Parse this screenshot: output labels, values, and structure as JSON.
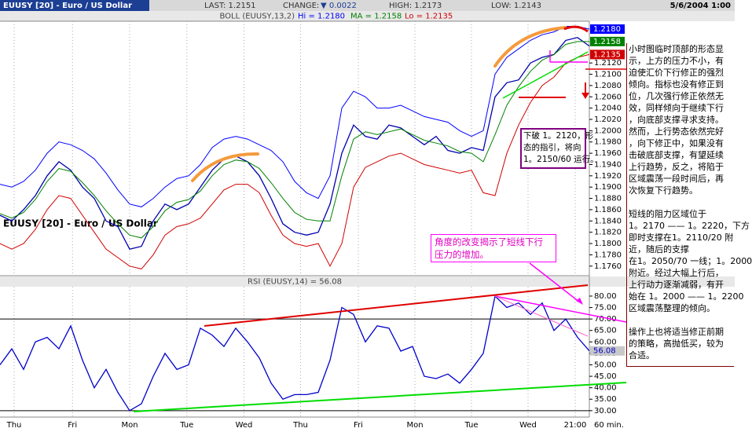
{
  "header": {
    "symbol": "EUUSY [20] - Euro / US Dollar",
    "last": "LAST: 1.2151",
    "change_label": "CHANGE:",
    "change": "▼ 0.0022",
    "high": "HIGH: 1.2173",
    "low": "LOW: 1.2143",
    "datetime": "5/6/2004 1:00"
  },
  "chart_data": [
    {
      "type": "line",
      "subtitle": "BOLL (EUUSY,13,2)",
      "legend_items": [
        "Hi = 1.2180",
        "MA = 1.2158",
        "Lo = 1.2135"
      ],
      "x": [
        0,
        2,
        4,
        6,
        8,
        10,
        12,
        14,
        16,
        18,
        20,
        22,
        24,
        26,
        28,
        30,
        32,
        34,
        36,
        38,
        40,
        42,
        44,
        46,
        48,
        50,
        52,
        54,
        56,
        58,
        60,
        62,
        64,
        66,
        68,
        70,
        72,
        74,
        76,
        78,
        80,
        82,
        84,
        86,
        88,
        90,
        92,
        94,
        96,
        98,
        100
      ],
      "xlim": [
        0,
        100
      ],
      "ylim": [
        1.1743,
        1.2194
      ],
      "yticks": [
        {
          "value": 1.176,
          "label": "1.1760"
        },
        {
          "value": 1.178,
          "label": "1.1780"
        },
        {
          "value": 1.18,
          "label": "1.1800"
        },
        {
          "value": 1.182,
          "label": "1.1820"
        },
        {
          "value": 1.184,
          "label": "1.1840"
        },
        {
          "value": 1.186,
          "label": "1.1860"
        },
        {
          "value": 1.188,
          "label": "1.1880"
        },
        {
          "value": 1.19,
          "label": "1.1900"
        },
        {
          "value": 1.192,
          "label": "1.1920"
        },
        {
          "value": 1.194,
          "label": "1.1940"
        },
        {
          "value": 1.196,
          "label": "1.1960"
        },
        {
          "value": 1.198,
          "label": "1.1980"
        },
        {
          "value": 1.2,
          "label": "1.2000"
        },
        {
          "value": 1.202,
          "label": "1.2020"
        },
        {
          "value": 1.204,
          "label": "1.2040"
        },
        {
          "value": 1.206,
          "label": "1.2060"
        },
        {
          "value": 1.208,
          "label": "1.2080"
        },
        {
          "value": 1.21,
          "label": "1.2100"
        },
        {
          "value": 1.212,
          "label": "1.2120"
        }
      ],
      "series": [
        {
          "color": "#0000b0",
          "values": [
            1.185,
            1.184,
            1.186,
            1.1885,
            1.192,
            1.1945,
            1.193,
            1.19,
            1.188,
            1.184,
            1.183,
            1.179,
            1.1795,
            1.184,
            1.187,
            1.186,
            1.187,
            1.19,
            1.193,
            1.195,
            1.1955,
            1.1945,
            1.192,
            1.188,
            1.1835,
            1.182,
            1.1815,
            1.182,
            1.187,
            1.196,
            1.201,
            1.199,
            1.1985,
            1.201,
            1.2005,
            1.199,
            1.1975,
            1.199,
            1.1965,
            1.196,
            1.197,
            1.1965,
            1.206,
            1.2085,
            1.209,
            1.212,
            1.213,
            1.2135,
            1.216,
            1.2165,
            1.215
          ]
        },
        {
          "color": "#0000ff",
          "end_label": "1.2180",
          "values": [
            1.1905,
            1.19,
            1.191,
            1.193,
            1.196,
            1.198,
            1.1975,
            1.1965,
            1.195,
            1.1925,
            1.1895,
            1.187,
            1.1865,
            1.188,
            1.19,
            1.1915,
            1.192,
            1.194,
            1.197,
            1.1985,
            1.199,
            1.1985,
            1.1975,
            1.1965,
            1.1945,
            1.191,
            1.189,
            1.188,
            1.192,
            1.204,
            1.207,
            1.206,
            1.204,
            1.204,
            1.2045,
            1.2035,
            1.2025,
            1.202,
            1.2015,
            1.2,
            1.199,
            1.2,
            1.21,
            1.213,
            1.2145,
            1.216,
            1.217,
            1.2175,
            1.2185,
            1.2185,
            1.218
          ]
        },
        {
          "color": "#008000",
          "end_label": "1.2158",
          "values": [
            1.1853,
            1.1845,
            1.1855,
            1.1878,
            1.191,
            1.1933,
            1.1928,
            1.1908,
            1.1885,
            1.1858,
            1.1835,
            1.1815,
            1.181,
            1.183,
            1.1858,
            1.1873,
            1.1878,
            1.1893,
            1.192,
            1.194,
            1.1948,
            1.1945,
            1.1933,
            1.1908,
            1.188,
            1.1855,
            1.1843,
            1.184,
            1.184,
            1.192,
            1.1985,
            1.1998,
            1.1993,
            1.1998,
            1.2003,
            1.1993,
            1.1983,
            1.1978,
            1.1973,
            1.1963,
            1.196,
            1.1945,
            1.1993,
            1.2045,
            1.2078,
            1.2105,
            1.2125,
            1.2135,
            1.2153,
            1.2158,
            1.2158
          ]
        },
        {
          "color": "#d00000",
          "end_label": "1.2135",
          "values": [
            1.18,
            1.179,
            1.18,
            1.1825,
            1.186,
            1.1885,
            1.188,
            1.185,
            1.182,
            1.179,
            1.1775,
            1.176,
            1.1755,
            1.178,
            1.1815,
            1.183,
            1.1835,
            1.1845,
            1.187,
            1.1895,
            1.1905,
            1.1905,
            1.189,
            1.185,
            1.1815,
            1.18,
            1.1795,
            1.18,
            1.176,
            1.18,
            1.19,
            1.1935,
            1.1945,
            1.1955,
            1.196,
            1.195,
            1.194,
            1.1935,
            1.193,
            1.1925,
            1.193,
            1.189,
            1.1885,
            1.196,
            1.201,
            1.205,
            1.208,
            1.2095,
            1.212,
            1.213,
            1.2135
          ]
        }
      ]
    },
    {
      "type": "line",
      "title": "RSI (EUUSY,14) = 56.08",
      "end_label": "56.08",
      "x": [
        0,
        2,
        4,
        6,
        8,
        10,
        12,
        14,
        16,
        18,
        20,
        22,
        24,
        26,
        28,
        30,
        32,
        34,
        36,
        38,
        40,
        42,
        44,
        46,
        48,
        50,
        52,
        54,
        56,
        58,
        60,
        62,
        64,
        66,
        68,
        70,
        72,
        74,
        76,
        78,
        80,
        82,
        84,
        86,
        88,
        90,
        92,
        94,
        96,
        98,
        100
      ],
      "xlim": [
        0,
        100
      ],
      "xticks": [
        {
          "value": 2.4,
          "label": "Thu"
        },
        {
          "value": 12.3,
          "label": "Fri"
        },
        {
          "value": 22,
          "label": "Mon"
        },
        {
          "value": 31.7,
          "label": "Tue"
        },
        {
          "value": 41.4,
          "label": "Wed"
        },
        {
          "value": 51,
          "label": "Thu"
        },
        {
          "value": 60.8,
          "label": "Fri"
        },
        {
          "value": 70.4,
          "label": "Mon"
        },
        {
          "value": 80,
          "label": "Tue"
        },
        {
          "value": 89.6,
          "label": "Wed"
        },
        {
          "value": 97.6,
          "label": "21:00"
        }
      ],
      "x_unit": "60 min.",
      "ylim": [
        27.2,
        84.1
      ],
      "yticks": [
        {
          "value": 30,
          "label": "30.00"
        },
        {
          "value": 35,
          "label": "35.00"
        },
        {
          "value": 40,
          "label": "40.00"
        },
        {
          "value": 45,
          "label": "45.00"
        },
        {
          "value": 50,
          "label": "50.00"
        },
        {
          "value": 55,
          "label": "55.00"
        },
        {
          "value": 60,
          "label": "60.00"
        },
        {
          "value": 65,
          "label": "65.00"
        },
        {
          "value": 70,
          "label": "70.00"
        },
        {
          "value": 75,
          "label": "75.00"
        },
        {
          "value": 80,
          "label": "80.00"
        }
      ],
      "ref_lines": [
        70,
        30
      ],
      "series": [
        {
          "color": "#0000cc",
          "values": [
            50,
            57,
            48,
            60,
            62,
            57,
            67,
            52,
            40,
            48,
            38,
            30,
            33,
            45,
            55,
            48,
            50,
            66,
            63,
            58,
            66,
            60,
            53,
            42,
            35,
            37,
            37,
            38,
            52,
            75,
            72,
            60,
            67,
            66,
            56,
            58,
            45,
            44,
            46,
            42,
            48,
            55,
            80,
            75,
            77,
            72,
            77,
            65,
            70,
            62,
            56.08
          ]
        }
      ]
    }
  ],
  "annotations": {
    "breakdown": [
      "下破 1。2120，形",
      "态的指引，将向",
      "1。2150/60 运行。"
    ],
    "angle": [
      "角度的改变揭示了短线下行",
      "压力的增加。"
    ],
    "commentary": [
      [
        "小时图临时顶部的形态显",
        "示，上方的压力不小，有",
        "迫使汇价下行修正的强烈",
        "倾向。指标也没有修正到",
        "位，几次强行修正依然无",
        "效，同样倾向于继续下行",
        "，向底部支撑寻求支持。",
        "然而，上行势态依然完好",
        "，向下修正中，如果没有",
        "击破底部支撑，有望延续",
        "上行趋势，反之，将陷于",
        "区域震荡一段时间后，再",
        "次恢复下行趋势。"
      ],
      [
        "短线的阻力区域位于",
        "1。2170 —— 1。2220，下方",
        "即时支撑在1。2110/20 附",
        "近，随后的支撑",
        "在1。2050/70 一线；1。2000",
        "附近。经过大幅上行后，",
        "上行动力逐渐减弱，有开",
        "始在 1。2000 —— 1。2200",
        "区域震荡整理的倾向。"
      ],
      [
        "操作上也将适当修正前期",
        "的策略，高抛低买，较为",
        "合适。"
      ]
    ]
  }
}
